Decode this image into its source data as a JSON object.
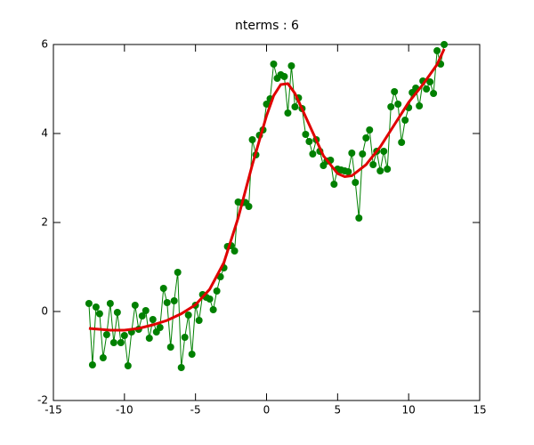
{
  "chart_data": {
    "type": "line",
    "title": "nterms : 6",
    "xlim": [
      -15,
      15
    ],
    "ylim": [
      -2,
      6
    ],
    "xticks": [
      -15,
      -10,
      -5,
      0,
      5,
      10,
      15
    ],
    "yticks": [
      -2,
      0,
      2,
      4,
      6
    ],
    "series": [
      {
        "color": "#008000",
        "markers": true,
        "x": [
          -12.5,
          -12.25,
          -12,
          -11.75,
          -11.5,
          -11.25,
          -11,
          -10.75,
          -10.5,
          -10.25,
          -10,
          -9.75,
          -9.5,
          -9.25,
          -9,
          -8.75,
          -8.5,
          -8.25,
          -8,
          -7.75,
          -7.5,
          -7.25,
          -7,
          -6.75,
          -6.5,
          -6.25,
          -6,
          -5.75,
          -5.5,
          -5.25,
          -5,
          -4.75,
          -4.5,
          -4.25,
          -4,
          -3.75,
          -3.5,
          -3.25,
          -3,
          -2.75,
          -2.5,
          -2.25,
          -2,
          -1.75,
          -1.5,
          -1.25,
          -1,
          -0.75,
          -0.5,
          -0.25,
          0,
          0.25,
          0.5,
          0.75,
          1,
          1.25,
          1.5,
          1.75,
          2,
          2.25,
          2.5,
          2.75,
          3,
          3.25,
          3.5,
          3.75,
          4,
          4.25,
          4.5,
          4.75,
          5,
          5.25,
          5.5,
          5.75,
          6,
          6.25,
          6.5,
          6.75,
          7,
          7.25,
          7.5,
          7.75,
          8,
          8.25,
          8.5,
          8.75,
          9,
          9.25,
          9.5,
          9.75,
          10,
          10.25,
          10.5,
          10.75,
          11,
          11.25,
          11.5,
          11.75,
          12,
          12.25,
          12.5
        ],
        "values": [
          0.18,
          -1.2,
          0.1,
          -0.05,
          -1.04,
          -0.52,
          0.18,
          -0.7,
          -0.02,
          -0.7,
          -0.54,
          -1.22,
          -0.46,
          0.14,
          -0.4,
          -0.1,
          0.02,
          -0.6,
          -0.18,
          -0.46,
          -0.36,
          0.52,
          0.2,
          -0.8,
          0.24,
          0.88,
          -1.26,
          -0.58,
          -0.08,
          -0.96,
          0.14,
          -0.2,
          0.38,
          0.32,
          0.28,
          0.04,
          0.46,
          0.78,
          0.98,
          1.46,
          1.48,
          1.36,
          2.46,
          2.44,
          2.45,
          2.36,
          3.86,
          3.52,
          3.96,
          4.08,
          4.66,
          4.78,
          5.56,
          5.24,
          5.32,
          5.28,
          4.46,
          5.52,
          4.6,
          4.8,
          4.56,
          3.98,
          3.82,
          3.54,
          3.86,
          3.6,
          3.28,
          3.38,
          3.4,
          2.86,
          3.2,
          3.18,
          3.16,
          3.14,
          3.56,
          2.9,
          2.1,
          3.54,
          3.9,
          4.08,
          3.3,
          3.6,
          3.16,
          3.6,
          3.2,
          4.6,
          4.94,
          4.66,
          3.8,
          4.3,
          4.58,
          4.92,
          5.02,
          4.62,
          5.18,
          5.0,
          5.16,
          4.9,
          5.86,
          5.56,
          6.0
        ]
      },
      {
        "color": "#e00000",
        "markers": false,
        "x": [
          -12.5,
          -11,
          -10,
          -9,
          -8,
          -7,
          -6,
          -5,
          -4,
          -3,
          -2,
          -1,
          0,
          0.5,
          1,
          1.5,
          2,
          3,
          4,
          5,
          5.5,
          6,
          7,
          8,
          9,
          10,
          11,
          12,
          12.5
        ],
        "values": [
          -0.38,
          -0.42,
          -0.42,
          -0.38,
          -0.3,
          -0.2,
          -0.05,
          0.15,
          0.5,
          1.1,
          2.1,
          3.3,
          4.4,
          4.85,
          5.1,
          5.12,
          4.9,
          4.2,
          3.5,
          3.1,
          3.03,
          3.05,
          3.3,
          3.7,
          4.2,
          4.7,
          5.1,
          5.55,
          5.9
        ]
      }
    ]
  }
}
